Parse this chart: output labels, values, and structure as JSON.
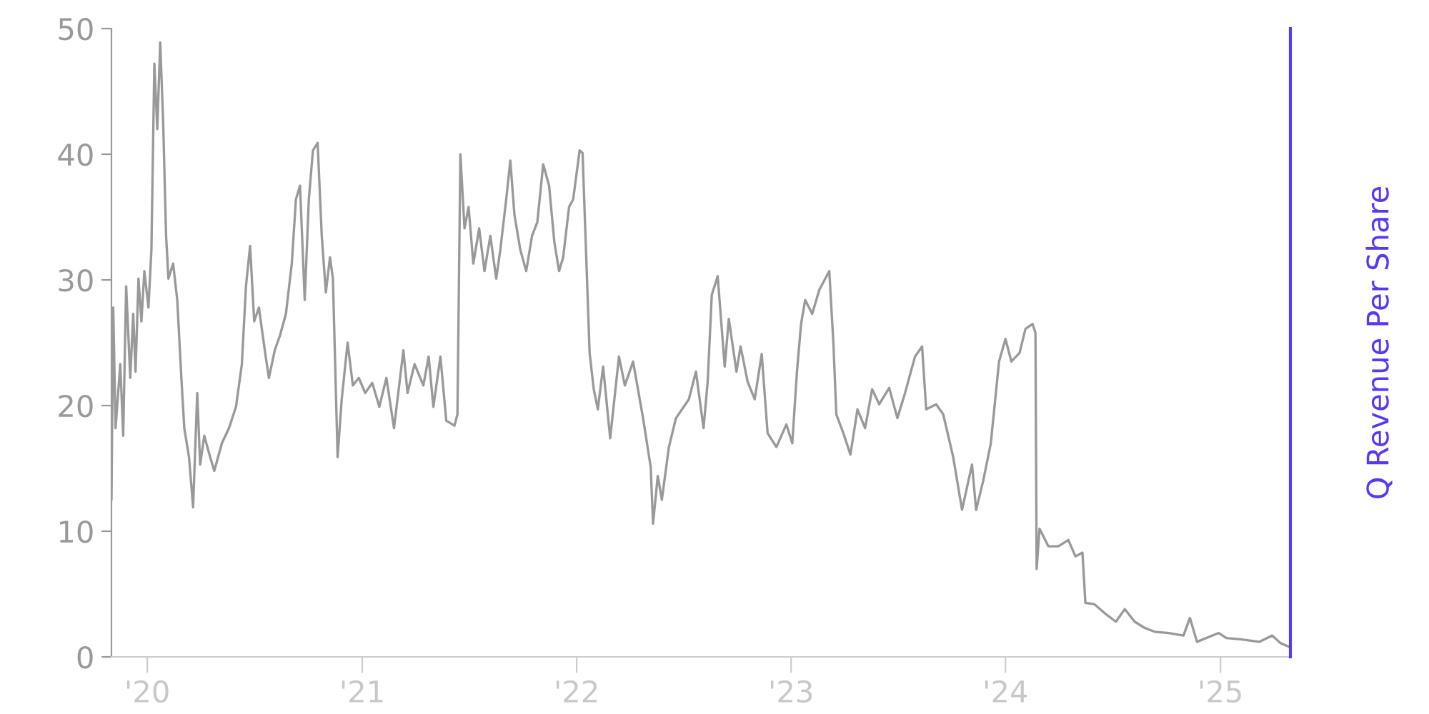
{
  "chart_data": {
    "type": "line",
    "y2label": "Q Revenue Per Share",
    "xlim": [
      "2019-11-01",
      "2025-04-30"
    ],
    "ylim": [
      0,
      50
    ],
    "yticks": [
      0,
      10,
      20,
      30,
      40,
      50
    ],
    "xticks": [
      {
        "value": "2020-01-01",
        "label": "'20"
      },
      {
        "value": "2021-01-01",
        "label": "'21"
      },
      {
        "value": "2022-01-01",
        "label": "'22"
      },
      {
        "value": "2023-01-01",
        "label": "'23"
      },
      {
        "value": "2024-01-01",
        "label": "'24"
      },
      {
        "value": "2025-01-01",
        "label": "'25"
      }
    ],
    "grid": false,
    "series": [
      {
        "color": "#999999",
        "x": [
          "2019-11-01",
          "2019-11-04",
          "2019-11-08",
          "2019-11-16",
          "2019-11-21",
          "2019-11-26",
          "2019-12-03",
          "2019-12-08",
          "2019-12-12",
          "2019-12-17",
          "2019-12-22",
          "2019-12-27",
          "2020-01-03",
          "2020-01-08",
          "2020-01-13",
          "2020-01-18",
          "2020-01-23",
          "2020-01-28",
          "2020-02-02",
          "2020-02-06",
          "2020-02-14",
          "2020-02-21",
          "2020-02-28",
          "2020-03-04",
          "2020-03-12",
          "2020-03-19",
          "2020-03-26",
          "2020-03-31",
          "2020-04-07",
          "2020-04-17",
          "2020-04-24",
          "2020-05-07",
          "2020-05-19",
          "2020-05-31",
          "2020-06-10",
          "2020-06-17",
          "2020-06-24",
          "2020-07-01",
          "2020-07-09",
          "2020-07-19",
          "2020-07-26",
          "2020-08-05",
          "2020-08-14",
          "2020-08-24",
          "2020-09-03",
          "2020-09-10",
          "2020-09-17",
          "2020-09-25",
          "2020-10-02",
          "2020-10-09",
          "2020-10-17",
          "2020-10-24",
          "2020-10-31",
          "2020-11-07",
          "2020-11-12",
          "2020-11-20",
          "2020-11-27",
          "2020-12-07",
          "2020-12-16",
          "2020-12-26",
          "2021-01-06",
          "2021-01-18",
          "2021-01-30",
          "2021-02-11",
          "2021-02-24",
          "2021-03-12",
          "2021-03-19",
          "2021-03-31",
          "2021-04-15",
          "2021-04-24",
          "2021-05-02",
          "2021-05-14",
          "2021-05-24",
          "2021-06-07",
          "2021-06-12",
          "2021-06-17",
          "2021-06-24",
          "2021-07-01",
          "2021-07-09",
          "2021-07-19",
          "2021-07-28",
          "2021-08-07",
          "2021-08-17",
          "2021-08-24",
          "2021-09-03",
          "2021-09-10",
          "2021-09-17",
          "2021-09-27",
          "2021-10-07",
          "2021-10-17",
          "2021-10-26",
          "2021-11-05",
          "2021-11-15",
          "2021-11-24",
          "2021-12-02",
          "2021-12-09",
          "2021-12-19",
          "2021-12-26",
          "2022-01-06",
          "2022-01-11",
          "2022-01-23",
          "2022-01-30",
          "2022-02-06",
          "2022-02-15",
          "2022-02-27",
          "2022-03-14",
          "2022-03-24",
          "2022-04-07",
          "2022-04-24",
          "2022-05-07",
          "2022-05-11",
          "2022-05-19",
          "2022-05-26",
          "2022-06-07",
          "2022-06-19",
          "2022-07-11",
          "2022-07-23",
          "2022-08-05",
          "2022-08-12",
          "2022-08-19",
          "2022-08-29",
          "2022-09-10",
          "2022-09-17",
          "2022-09-30",
          "2022-10-07",
          "2022-10-19",
          "2022-10-31",
          "2022-11-12",
          "2022-11-22",
          "2022-12-07",
          "2022-12-24",
          "2023-01-03",
          "2023-01-11",
          "2023-01-18",
          "2023-01-25",
          "2023-02-06",
          "2023-02-18",
          "2023-03-07",
          "2023-03-14",
          "2023-03-19",
          "2023-03-31",
          "2023-04-12",
          "2023-04-24",
          "2023-05-07",
          "2023-05-19",
          "2023-05-31",
          "2023-06-17",
          "2023-07-01",
          "2023-07-14",
          "2023-07-31",
          "2023-08-12",
          "2023-08-19",
          "2023-09-05",
          "2023-09-17",
          "2023-10-04",
          "2023-10-19",
          "2023-11-05",
          "2023-11-12",
          "2023-11-24",
          "2023-12-07",
          "2023-12-21",
          "2024-01-01",
          "2024-01-11",
          "2024-01-25",
          "2024-02-04",
          "2024-02-16",
          "2024-02-21",
          "2024-02-23",
          "2024-02-28",
          "2024-03-14",
          "2024-03-31",
          "2024-04-17",
          "2024-04-29",
          "2024-05-11",
          "2024-05-16",
          "2024-05-31",
          "2024-06-20",
          "2024-07-07",
          "2024-07-22",
          "2024-08-08",
          "2024-08-25",
          "2024-09-11",
          "2024-10-05",
          "2024-10-30",
          "2024-11-10",
          "2024-11-22",
          "2024-12-29",
          "2025-01-11",
          "2025-02-04",
          "2025-03-08",
          "2025-03-30",
          "2025-04-13",
          "2025-04-28"
        ],
        "values": [
          12.5,
          27.8,
          18.2,
          23.3,
          17.6,
          29.5,
          22.2,
          27.3,
          22.7,
          30.1,
          26.7,
          30.7,
          27.8,
          32.4,
          47.2,
          42,
          48.9,
          42.6,
          33.5,
          30.1,
          31.3,
          28.4,
          22.2,
          18.2,
          15.9,
          11.9,
          21,
          15.3,
          17.6,
          15.9,
          14.8,
          17,
          18.2,
          19.9,
          23.3,
          29.5,
          32.7,
          26.7,
          27.8,
          24.4,
          22.2,
          24.4,
          25.6,
          27.3,
          31.3,
          36.4,
          37.5,
          28.4,
          36.4,
          40.3,
          40.9,
          33.5,
          29,
          31.8,
          30.1,
          15.9,
          20.5,
          25,
          21.6,
          22.2,
          21,
          21.8,
          19.9,
          22.2,
          18.2,
          24.4,
          21,
          23.3,
          21.6,
          23.9,
          19.9,
          23.9,
          18.8,
          18.4,
          19.3,
          40,
          34.1,
          35.8,
          31.3,
          34.1,
          30.7,
          33.5,
          30.1,
          32.4,
          36.4,
          39.5,
          35.2,
          32.4,
          30.7,
          33.5,
          34.6,
          39.2,
          37.5,
          33,
          30.7,
          31.8,
          35.8,
          36.4,
          40.3,
          40.1,
          24.2,
          21.3,
          19.7,
          23.1,
          17.4,
          23.9,
          21.6,
          23.5,
          19,
          15.1,
          10.6,
          14.4,
          12.5,
          16.7,
          19,
          20.5,
          22.7,
          18.2,
          21.9,
          28.8,
          30.3,
          23.1,
          26.9,
          22.7,
          24.7,
          21.9,
          20.5,
          24.1,
          17.8,
          16.7,
          18.5,
          17,
          22.7,
          26.5,
          28.4,
          27.3,
          29.2,
          30.7,
          25,
          19.3,
          17.8,
          16.1,
          19.7,
          18.2,
          21.3,
          20.1,
          21.4,
          19,
          21,
          23.9,
          24.7,
          19.7,
          20.1,
          19.3,
          15.9,
          11.7,
          15.3,
          11.7,
          14,
          17,
          23.5,
          25.3,
          23.5,
          24.2,
          26.1,
          26.5,
          25.8,
          7.0,
          10.2,
          8.8,
          8.8,
          9.3,
          8.0,
          8.3,
          4.3,
          4.2,
          3.4,
          2.8,
          3.8,
          2.8,
          2.3,
          2.0,
          1.9,
          1.7,
          3.1,
          1.2,
          1.9,
          1.5,
          1.4,
          1.2,
          1.7,
          1.1,
          0.8
        ]
      }
    ]
  }
}
